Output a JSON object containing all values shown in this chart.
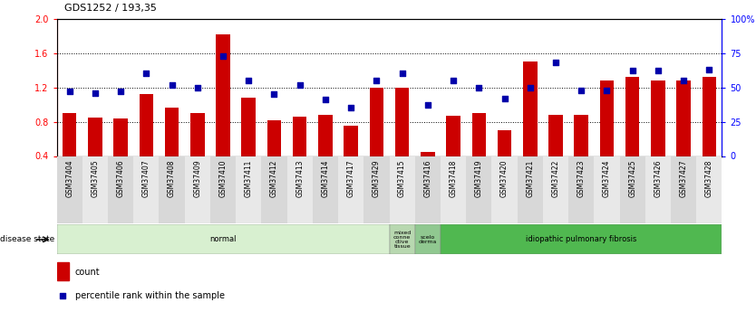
{
  "title": "GDS1252 / 193,35",
  "samples": [
    "GSM37404",
    "GSM37405",
    "GSM37406",
    "GSM37407",
    "GSM37408",
    "GSM37409",
    "GSM37410",
    "GSM37411",
    "GSM37412",
    "GSM37413",
    "GSM37414",
    "GSM37417",
    "GSM37429",
    "GSM37415",
    "GSM37416",
    "GSM37418",
    "GSM37419",
    "GSM37420",
    "GSM37421",
    "GSM37422",
    "GSM37423",
    "GSM37424",
    "GSM37425",
    "GSM37426",
    "GSM37427",
    "GSM37428"
  ],
  "count_values": [
    0.9,
    0.85,
    0.84,
    1.12,
    0.96,
    0.9,
    1.82,
    1.08,
    0.82,
    0.86,
    0.88,
    0.75,
    1.2,
    1.2,
    0.45,
    0.87,
    0.9,
    0.7,
    1.5,
    0.88,
    0.88,
    1.28,
    1.32,
    1.28,
    1.28,
    1.32
  ],
  "percentile_values": [
    47,
    46,
    47,
    60,
    52,
    50,
    73,
    55,
    45,
    52,
    41,
    35,
    55,
    60,
    37,
    55,
    50,
    42,
    50,
    68,
    48,
    48,
    62,
    62,
    55,
    63
  ],
  "ylim_left": [
    0.4,
    2.0
  ],
  "ylim_right": [
    0,
    100
  ],
  "yticks_left": [
    0.4,
    0.8,
    1.2,
    1.6,
    2.0
  ],
  "yticks_right": [
    0,
    25,
    50,
    75,
    100
  ],
  "ytick_labels_right": [
    "0",
    "25",
    "50",
    "75",
    "100%"
  ],
  "bar_color": "#CC0000",
  "scatter_color": "#0000AA",
  "disease_groups": [
    {
      "label": "normal",
      "start": 0,
      "end": 13,
      "color": "#d8f0d0"
    },
    {
      "label": "mixed\nconne\nctive\ntissue",
      "start": 13,
      "end": 14,
      "color": "#b8d8b0"
    },
    {
      "label": "scelo\nderma",
      "start": 14,
      "end": 15,
      "color": "#90c890"
    },
    {
      "label": "idiopathic pulmonary fibrosis",
      "start": 15,
      "end": 26,
      "color": "#50b850"
    }
  ],
  "disease_state_label": "disease state",
  "legend_count_label": "count",
  "legend_percentile_label": "percentile rank within the sample",
  "bar_width": 0.55,
  "scatter_marker": "s",
  "scatter_size": 18
}
